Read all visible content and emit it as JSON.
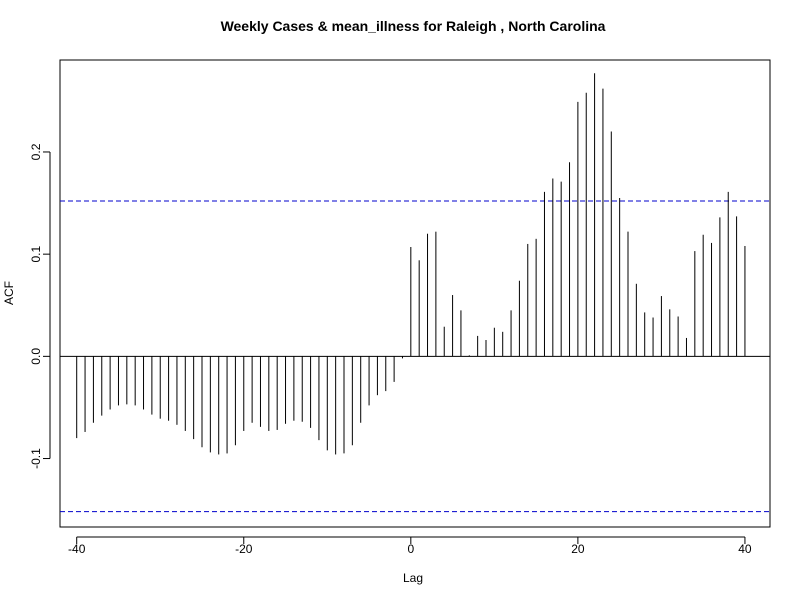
{
  "chart_data": {
    "type": "bar",
    "title": "Weekly Cases & mean_illness for Raleigh , North Carolina",
    "xlabel": "Lag",
    "ylabel": "ACF",
    "xlim": [
      -42,
      43
    ],
    "ylim": [
      -0.167,
      0.29
    ],
    "x_ticks": [
      -40,
      -20,
      0,
      20,
      40
    ],
    "y_ticks": [
      -0.1,
      0.0,
      0.1,
      0.2
    ],
    "y_tick_labels": [
      "-0.1",
      "0.0",
      "0.1",
      "0.2"
    ],
    "confidence_bound": 0.152,
    "confidence_line_color": "#0000cc",
    "bar_color": "#000000",
    "zero_line": true,
    "grid": false,
    "x": [
      -40,
      -39,
      -38,
      -37,
      -36,
      -35,
      -34,
      -33,
      -32,
      -31,
      -30,
      -29,
      -28,
      -27,
      -26,
      -25,
      -24,
      -23,
      -22,
      -21,
      -20,
      -19,
      -18,
      -17,
      -16,
      -15,
      -14,
      -13,
      -12,
      -11,
      -10,
      -9,
      -8,
      -7,
      -6,
      -5,
      -4,
      -3,
      -2,
      -1,
      0,
      1,
      2,
      3,
      4,
      5,
      6,
      7,
      8,
      9,
      10,
      11,
      12,
      13,
      14,
      15,
      16,
      17,
      18,
      19,
      20,
      21,
      22,
      23,
      24,
      25,
      26,
      27,
      28,
      29,
      30,
      31,
      32,
      33,
      34,
      35,
      36,
      37,
      38,
      39,
      40
    ],
    "values": [
      -0.08,
      -0.074,
      -0.065,
      -0.058,
      -0.052,
      -0.048,
      -0.047,
      -0.048,
      -0.052,
      -0.057,
      -0.061,
      -0.063,
      -0.067,
      -0.073,
      -0.081,
      -0.089,
      -0.094,
      -0.096,
      -0.095,
      -0.087,
      -0.073,
      -0.065,
      -0.069,
      -0.073,
      -0.072,
      -0.066,
      -0.063,
      -0.064,
      -0.07,
      -0.082,
      -0.092,
      -0.096,
      -0.095,
      -0.087,
      -0.065,
      -0.048,
      -0.038,
      -0.034,
      -0.025,
      -0.002,
      0.107,
      0.094,
      0.12,
      0.122,
      0.029,
      0.06,
      0.045,
      0.001,
      0.02,
      0.016,
      0.028,
      0.024,
      0.045,
      0.074,
      0.11,
      0.115,
      0.161,
      0.174,
      0.171,
      0.19,
      0.249,
      0.258,
      0.277,
      0.262,
      0.22,
      0.155,
      0.122,
      0.071,
      0.043,
      0.038,
      0.059,
      0.046,
      0.039,
      0.018,
      0.103,
      0.119,
      0.111,
      0.136,
      0.161,
      0.137,
      0.108
    ]
  }
}
